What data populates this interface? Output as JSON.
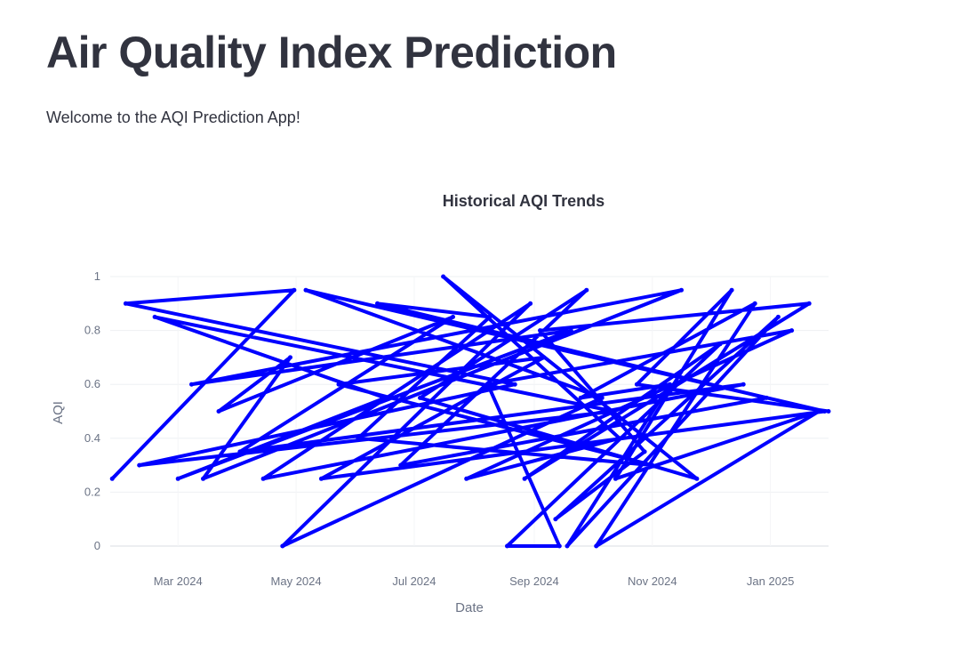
{
  "page": {
    "title": "Air Quality Index Prediction",
    "intro": "Welcome to the AQI Prediction App!"
  },
  "chart_data": {
    "type": "line",
    "title": "Historical AQI Trends",
    "xlabel": "Date",
    "ylabel": "AQI",
    "x_range": [
      "2024-01-26",
      "2025-01-31"
    ],
    "ylim": [
      0,
      1
    ],
    "x_ticks": [
      {
        "date": "2024-03-01",
        "label": "Mar 2024"
      },
      {
        "date": "2024-05-01",
        "label": "May 2024"
      },
      {
        "date": "2024-07-01",
        "label": "Jul 2024"
      },
      {
        "date": "2024-09-01",
        "label": "Sep 2024"
      },
      {
        "date": "2024-11-01",
        "label": "Nov 2024"
      },
      {
        "date": "2025-01-01",
        "label": "Jan 2025"
      }
    ],
    "y_ticks": [
      0,
      0.2,
      0.4,
      0.6,
      0.8,
      1
    ],
    "grid": true,
    "legend": "none",
    "line_color": "#0000ff",
    "series": [
      {
        "x": [
          "2024-01-27",
          "2024-04-30",
          "2024-02-03",
          "2024-08-22",
          "2024-02-10",
          "2024-10-12",
          "2024-02-18",
          "2024-06-16",
          "2024-03-01",
          "2024-09-20",
          "2024-03-08",
          "2024-11-16",
          "2024-03-14",
          "2024-04-28",
          "2024-03-22",
          "2024-07-21",
          "2024-04-02",
          "2024-12-18",
          "2024-04-14",
          "2024-08-30",
          "2024-04-24",
          "2024-10-06",
          "2024-05-06",
          "2025-01-29",
          "2024-05-14",
          "2024-09-06",
          "2024-05-23",
          "2024-11-01",
          "2024-06-02",
          "2024-08-09",
          "2024-06-12",
          "2024-12-30",
          "2024-06-24",
          "2024-09-28",
          "2024-07-04",
          "2024-11-24",
          "2024-07-16",
          "2024-10-15",
          "2024-07-28",
          "2025-01-12",
          "2024-08-08",
          "2024-09-14",
          "2024-08-18",
          "2024-12-06",
          "2024-08-27",
          "2025-01-21",
          "2024-09-04",
          "2024-10-28",
          "2024-09-12",
          "2025-01-05",
          "2024-09-18",
          "2024-11-10",
          "2024-09-25",
          "2024-12-24",
          "2024-10-03",
          "2025-01-26",
          "2024-10-13",
          "2024-12-12",
          "2024-10-24",
          "2025-01-31"
        ],
        "y": [
          0.25,
          0.95,
          0.9,
          0.6,
          0.3,
          0.5,
          0.85,
          0.55,
          0.25,
          0.8,
          0.6,
          0.95,
          0.25,
          0.7,
          0.5,
          0.85,
          0.35,
          0.6,
          0.25,
          0.9,
          0.0,
          0.55,
          0.95,
          0.5,
          0.25,
          0.7,
          0.6,
          0.3,
          0.4,
          0.85,
          0.9,
          0.55,
          0.3,
          0.95,
          0.55,
          0.25,
          1.0,
          0.4,
          0.25,
          0.8,
          0.6,
          0.0,
          0.0,
          0.75,
          0.25,
          0.9,
          0.8,
          0.35,
          0.1,
          0.85,
          0.0,
          0.6,
          0.55,
          0.9,
          0.0,
          0.5,
          0.25,
          0.95,
          0.6,
          0.5
        ]
      }
    ]
  }
}
